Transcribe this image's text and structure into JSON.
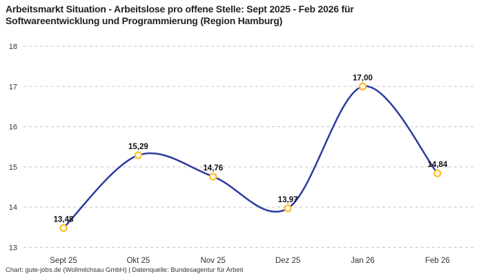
{
  "header": {
    "title": "Arbeitsmarkt Situation - Arbeitslose pro offene Stelle: Sept 2025 - Feb 2026 für Softwareentwicklung und Programmierung (Region Hamburg)"
  },
  "footer": {
    "credit": "Chart: gute-jobs.de (Wollmilchsau GmbH) | Datenquelle: Bundesagentur für Arbeit"
  },
  "chart_data": {
    "type": "line",
    "title": "Arbeitsmarkt Situation - Arbeitslose pro offene Stelle: Sept 2025 - Feb 2026 für Softwareentwicklung und Programmierung (Region Hamburg)",
    "categories": [
      "Sept 25",
      "Okt 25",
      "Nov 25",
      "Dez 25",
      "Jan 26",
      "Feb 26"
    ],
    "values": [
      13.48,
      15.29,
      14.76,
      13.97,
      17.0,
      14.84
    ],
    "value_labels": [
      "13,48",
      "15,29",
      "14,76",
      "13,97",
      "17,00",
      "14,84"
    ],
    "xlabel": "",
    "ylabel": "",
    "ylim": [
      13,
      18
    ],
    "yticks": [
      13,
      14,
      15,
      16,
      17,
      18
    ],
    "grid": "horizontal-dashed",
    "legend_position": "none",
    "line_style": "smooth-spline",
    "colors": {
      "line": "#2b3a9e",
      "marker_stroke": "#fdc02d",
      "marker_fill": "#ffffff",
      "gridline": "#cccccc",
      "tick_label": "#333333",
      "value_label": "#111111",
      "title": "#222222",
      "background": "#ffffff"
    }
  }
}
